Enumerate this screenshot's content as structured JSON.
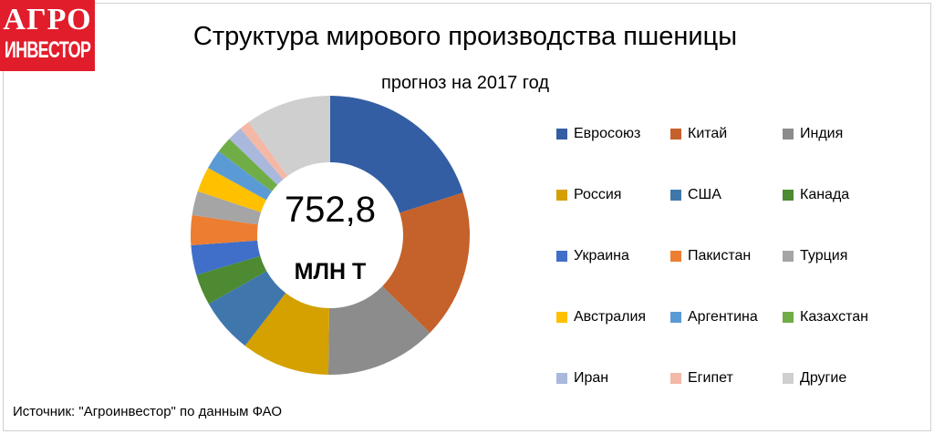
{
  "logo": {
    "line1": "АГРО",
    "line2": "ИНВЕСТОР"
  },
  "source": "Источник:  \"Агроинвестор\" по данным ФАО",
  "chart_data": {
    "type": "pie",
    "donut": true,
    "title": "Структура мирового производства пшеницы",
    "subtitle": "прогноз на 2017 год",
    "center_value": "752,8",
    "center_unit": "МЛН Т",
    "legend_position": "right",
    "categories": [
      "Евросоюз",
      "Китай",
      "Индия",
      "Россия",
      "США",
      "Канада",
      "Украина",
      "Пакистан",
      "Турция",
      "Австралия",
      "Аргентина",
      "Казахстан",
      "Иран",
      "Египет",
      "Другие"
    ],
    "values": [
      151,
      130,
      97,
      77,
      48,
      27,
      26,
      26,
      21,
      22,
      17,
      14,
      13,
      9,
      74.8
    ],
    "colors": [
      "#335ea4",
      "#c5612a",
      "#8c8c8c",
      "#d4a100",
      "#3f77ad",
      "#4d8a32",
      "#3f6fc8",
      "#ed7d31",
      "#a5a5a5",
      "#ffc000",
      "#5b9bd5",
      "#70ad47",
      "#a9b8dc",
      "#f4b8a7",
      "#cfcfcf"
    ]
  }
}
